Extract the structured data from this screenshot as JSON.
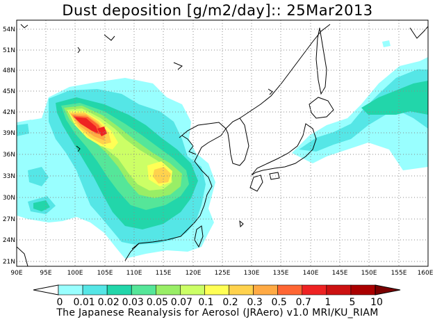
{
  "title": "Dust deposition [g/m2/day]:: 25Mar2013",
  "footer": "The Japanese Reanalysis for Aerosol (JRAero) v1.0 MRI/KU_RIAM",
  "axes": {
    "lat_labels": [
      "54N",
      "51N",
      "48N",
      "45N",
      "42N",
      "39N",
      "36N",
      "33N",
      "30N",
      "27N",
      "24N",
      "21N"
    ],
    "lon_labels": [
      "90E",
      "95E",
      "100E",
      "105E",
      "110E",
      "115E",
      "120E",
      "125E",
      "130E",
      "135E",
      "140E",
      "145E",
      "150E",
      "155E",
      "160E"
    ]
  },
  "colorbar": {
    "labels": [
      "0",
      "0.01",
      "0.02",
      "0.03",
      "0.05",
      "0.07",
      "0.1",
      "0.2",
      "0.3",
      "0.5",
      "0.7",
      "1",
      "5",
      "10"
    ],
    "colors": [
      "#ffffff",
      "#99ffff",
      "#55e6e6",
      "#22d6aa",
      "#55e699",
      "#99ee66",
      "#ccff66",
      "#ffff55",
      "#ffd24d",
      "#ffaa44",
      "#ff6633",
      "#ee2222",
      "#cc1111",
      "#aa0000",
      "#7a0000"
    ]
  }
}
